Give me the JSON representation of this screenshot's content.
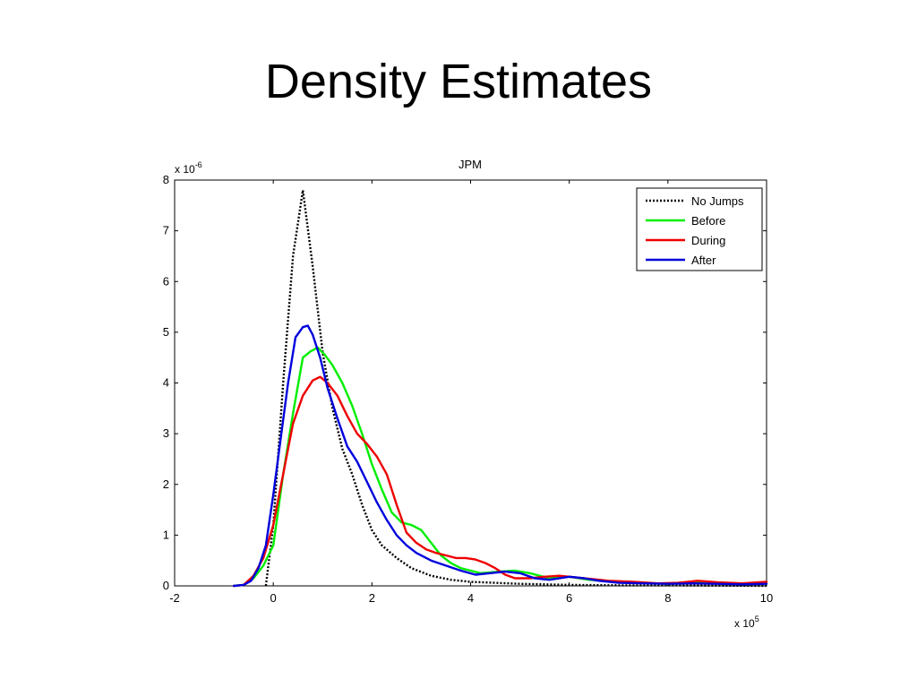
{
  "slide": {
    "title": "Density Estimates"
  },
  "chart_data": {
    "type": "line",
    "title": "JPM",
    "xlabel": "",
    "ylabel": "",
    "x_multiplier_base": "x 10",
    "x_multiplier_exp": "5",
    "y_multiplier_base": "x 10",
    "y_multiplier_exp": "-6",
    "xlim": [
      -2,
      10
    ],
    "ylim": [
      0,
      8
    ],
    "x_ticks": [
      -2,
      0,
      2,
      4,
      6,
      8,
      10
    ],
    "x_tick_labels": [
      "-2",
      "0",
      "2",
      "4",
      "6",
      "8",
      "10"
    ],
    "y_ticks": [
      0,
      1,
      2,
      3,
      4,
      5,
      6,
      7,
      8
    ],
    "y_tick_labels": [
      "0",
      "1",
      "2",
      "3",
      "4",
      "5",
      "6",
      "7",
      "8"
    ],
    "grid": false,
    "legend_position": "top-right",
    "series": [
      {
        "name": "No Jumps",
        "color": "#000000",
        "style": "dotted",
        "points": [
          [
            -0.15,
            0
          ],
          [
            0.0,
            1.2
          ],
          [
            0.2,
            4.0
          ],
          [
            0.4,
            6.5
          ],
          [
            0.6,
            7.8
          ],
          [
            0.8,
            6.3
          ],
          [
            1.0,
            4.6
          ],
          [
            1.2,
            3.5
          ],
          [
            1.4,
            2.7
          ],
          [
            1.6,
            2.2
          ],
          [
            1.8,
            1.6
          ],
          [
            2.0,
            1.1
          ],
          [
            2.2,
            0.8
          ],
          [
            2.5,
            0.55
          ],
          [
            2.8,
            0.35
          ],
          [
            3.2,
            0.2
          ],
          [
            3.6,
            0.12
          ],
          [
            4.0,
            0.08
          ],
          [
            5.0,
            0.04
          ],
          [
            6.0,
            0.02
          ],
          [
            7.0,
            0.01
          ],
          [
            8.0,
            0.01
          ],
          [
            10.0,
            0.0
          ]
        ]
      },
      {
        "name": "Before",
        "color": "#00ee00",
        "style": "solid",
        "points": [
          [
            -0.8,
            0
          ],
          [
            -0.6,
            0.02
          ],
          [
            -0.4,
            0.15
          ],
          [
            -0.2,
            0.4
          ],
          [
            0.0,
            0.8
          ],
          [
            0.2,
            2.2
          ],
          [
            0.4,
            3.4
          ],
          [
            0.6,
            4.5
          ],
          [
            0.75,
            4.62
          ],
          [
            0.9,
            4.7
          ],
          [
            1.05,
            4.55
          ],
          [
            1.2,
            4.35
          ],
          [
            1.4,
            4.0
          ],
          [
            1.6,
            3.55
          ],
          [
            1.8,
            3.0
          ],
          [
            2.0,
            2.4
          ],
          [
            2.2,
            1.9
          ],
          [
            2.4,
            1.45
          ],
          [
            2.6,
            1.25
          ],
          [
            2.8,
            1.2
          ],
          [
            3.0,
            1.1
          ],
          [
            3.2,
            0.85
          ],
          [
            3.4,
            0.6
          ],
          [
            3.6,
            0.45
          ],
          [
            3.8,
            0.35
          ],
          [
            4.0,
            0.3
          ],
          [
            4.2,
            0.25
          ],
          [
            4.6,
            0.28
          ],
          [
            4.9,
            0.3
          ],
          [
            5.2,
            0.25
          ],
          [
            5.6,
            0.15
          ],
          [
            6.0,
            0.18
          ],
          [
            6.4,
            0.12
          ],
          [
            7.0,
            0.08
          ],
          [
            7.5,
            0.06
          ],
          [
            8.0,
            0.04
          ],
          [
            8.5,
            0.08
          ],
          [
            9.0,
            0.06
          ],
          [
            9.5,
            0.05
          ],
          [
            10.0,
            0.05
          ]
        ]
      },
      {
        "name": "During",
        "color": "#ee0000",
        "style": "solid",
        "points": [
          [
            -0.8,
            0
          ],
          [
            -0.6,
            0.02
          ],
          [
            -0.4,
            0.2
          ],
          [
            -0.2,
            0.55
          ],
          [
            0.0,
            1.2
          ],
          [
            0.2,
            2.2
          ],
          [
            0.4,
            3.2
          ],
          [
            0.6,
            3.75
          ],
          [
            0.8,
            4.05
          ],
          [
            0.95,
            4.12
          ],
          [
            1.1,
            4.0
          ],
          [
            1.3,
            3.75
          ],
          [
            1.5,
            3.35
          ],
          [
            1.7,
            3.0
          ],
          [
            1.9,
            2.8
          ],
          [
            2.1,
            2.55
          ],
          [
            2.3,
            2.2
          ],
          [
            2.5,
            1.6
          ],
          [
            2.7,
            1.05
          ],
          [
            2.9,
            0.85
          ],
          [
            3.1,
            0.72
          ],
          [
            3.3,
            0.65
          ],
          [
            3.5,
            0.6
          ],
          [
            3.7,
            0.55
          ],
          [
            3.9,
            0.55
          ],
          [
            4.1,
            0.52
          ],
          [
            4.3,
            0.45
          ],
          [
            4.5,
            0.35
          ],
          [
            4.7,
            0.22
          ],
          [
            4.9,
            0.15
          ],
          [
            5.2,
            0.15
          ],
          [
            5.5,
            0.18
          ],
          [
            5.8,
            0.2
          ],
          [
            6.0,
            0.18
          ],
          [
            6.3,
            0.15
          ],
          [
            6.8,
            0.1
          ],
          [
            7.3,
            0.08
          ],
          [
            7.8,
            0.05
          ],
          [
            8.2,
            0.06
          ],
          [
            8.6,
            0.1
          ],
          [
            9.0,
            0.07
          ],
          [
            9.5,
            0.05
          ],
          [
            10.0,
            0.08
          ]
        ]
      },
      {
        "name": "After",
        "color": "#0000dd",
        "style": "solid",
        "points": [
          [
            -0.8,
            0
          ],
          [
            -0.6,
            0.02
          ],
          [
            -0.45,
            0.1
          ],
          [
            -0.3,
            0.35
          ],
          [
            -0.15,
            0.8
          ],
          [
            0.0,
            1.8
          ],
          [
            0.15,
            2.9
          ],
          [
            0.3,
            4.0
          ],
          [
            0.45,
            4.9
          ],
          [
            0.6,
            5.1
          ],
          [
            0.7,
            5.13
          ],
          [
            0.8,
            4.95
          ],
          [
            0.95,
            4.5
          ],
          [
            1.1,
            3.9
          ],
          [
            1.3,
            3.3
          ],
          [
            1.5,
            2.75
          ],
          [
            1.7,
            2.45
          ],
          [
            1.9,
            2.05
          ],
          [
            2.1,
            1.65
          ],
          [
            2.3,
            1.3
          ],
          [
            2.5,
            1.0
          ],
          [
            2.7,
            0.8
          ],
          [
            2.9,
            0.65
          ],
          [
            3.2,
            0.5
          ],
          [
            3.5,
            0.4
          ],
          [
            3.8,
            0.3
          ],
          [
            4.1,
            0.22
          ],
          [
            4.4,
            0.25
          ],
          [
            4.7,
            0.28
          ],
          [
            5.0,
            0.25
          ],
          [
            5.3,
            0.15
          ],
          [
            5.6,
            0.12
          ],
          [
            6.0,
            0.18
          ],
          [
            6.3,
            0.15
          ],
          [
            6.6,
            0.1
          ],
          [
            7.0,
            0.06
          ],
          [
            7.5,
            0.05
          ],
          [
            8.0,
            0.04
          ],
          [
            8.5,
            0.05
          ],
          [
            9.0,
            0.04
          ],
          [
            9.5,
            0.03
          ],
          [
            10.0,
            0.04
          ]
        ]
      }
    ]
  }
}
